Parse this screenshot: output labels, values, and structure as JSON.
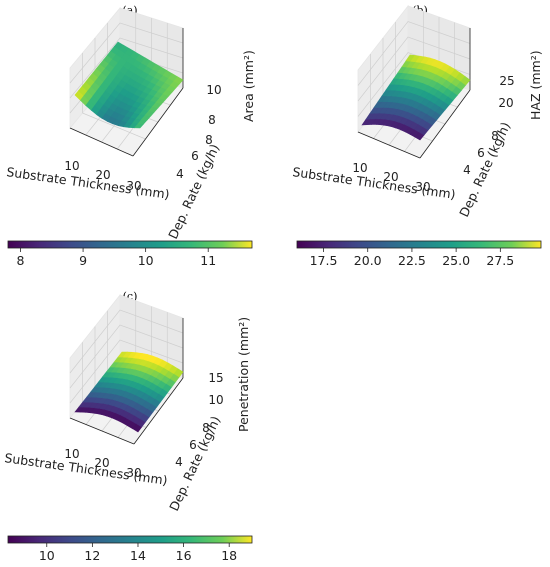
{
  "chart_data": [
    {
      "type": "surface",
      "panel_label": "(a)",
      "xlabel": "Substrate Thickness (mm)",
      "ylabel": "Dep. Rate (kg/h)",
      "zlabel": "Area (mm²)",
      "x_ticks": [
        "10",
        "20",
        "30"
      ],
      "y_ticks": [
        "4",
        "6",
        "8"
      ],
      "z_ticks": [
        "8",
        "10"
      ],
      "xlim": [
        5,
        32
      ],
      "ylim": [
        3,
        9
      ],
      "zlim": [
        7.8,
        11.8
      ],
      "corner_values": {
        "x_min_y_min": 11.7,
        "x_min_y_max": 10.2,
        "x_max_y_min": 10.6,
        "x_max_y_max": 11.0
      },
      "colorbar": {
        "ticks": [
          "8",
          "9",
          "10",
          "11"
        ],
        "range": [
          7.8,
          11.7
        ]
      },
      "colormap": "viridis"
    },
    {
      "type": "surface",
      "panel_label": "(b)",
      "xlabel": "Substrate Thickness (mm)",
      "ylabel": "Dep. Rate (kg/h)",
      "zlabel": "HAZ (mm²)",
      "x_ticks": [
        "10",
        "20",
        "30"
      ],
      "y_ticks": [
        "4",
        "6",
        "8"
      ],
      "z_ticks": [
        "20",
        "25"
      ],
      "xlim": [
        5,
        32
      ],
      "ylim": [
        3,
        9
      ],
      "zlim": [
        16,
        29.5
      ],
      "corner_values": {
        "x_min_y_min": 17.0,
        "x_min_y_max": 28.5,
        "x_max_y_min": 16.5,
        "x_max_y_max": 28.0
      },
      "colorbar": {
        "ticks": [
          "17.5",
          "20.0",
          "22.5",
          "25.0",
          "27.5"
        ],
        "range": [
          16.0,
          29.8
        ]
      },
      "colormap": "viridis"
    },
    {
      "type": "surface",
      "panel_label": "(c)",
      "xlabel": "Substrate Thickness (mm)",
      "ylabel": "Dep. Rate (kg/h)",
      "zlabel": "Penetration (mm²)",
      "x_ticks": [
        "10",
        "20",
        "30"
      ],
      "y_ticks": [
        "4",
        "6",
        "8"
      ],
      "z_ticks": [
        "10",
        "15"
      ],
      "xlim": [
        5,
        32
      ],
      "ylim": [
        3,
        9
      ],
      "zlim": [
        8,
        19
      ],
      "corner_values": {
        "x_min_y_min": 8.5,
        "x_min_y_max": 18.5,
        "x_max_y_min": 8.3,
        "x_max_y_max": 18.0
      },
      "colorbar": {
        "ticks": [
          "10",
          "12",
          "14",
          "16",
          "18"
        ],
        "range": [
          8.3,
          19.0
        ]
      },
      "colormap": "viridis"
    }
  ]
}
